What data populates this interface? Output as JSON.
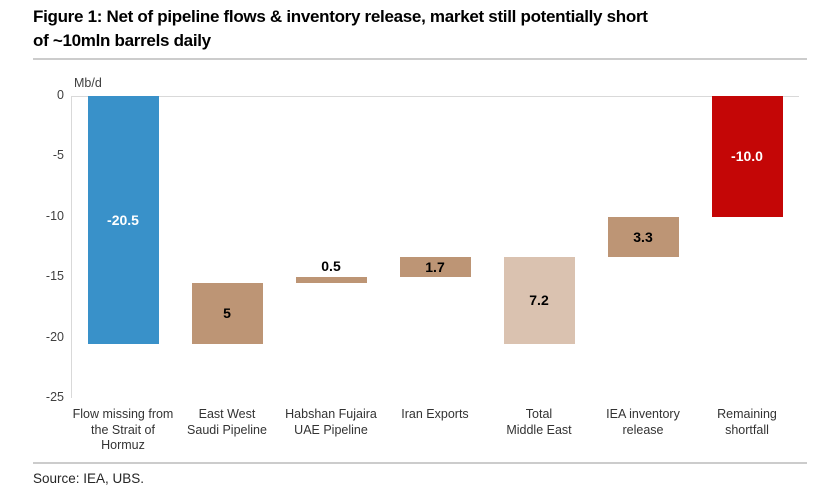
{
  "figure_title": "Figure 1: Net of pipeline flows & inventory release, market still potentially short\nof ~10mln barrels daily",
  "source_text": "Source: IEA, UBS.",
  "chart_data": {
    "type": "bar",
    "subtype": "waterfall",
    "title": "Figure 1: Net of pipeline flows & inventory release, market still potentially short of ~10mln barrels daily",
    "ylabel": "Mb/d",
    "xlabel": "",
    "ylim": [
      -25,
      0
    ],
    "yticks": [
      0,
      -5,
      -10,
      -15,
      -20,
      -25
    ],
    "grid": "zero-line-only",
    "legend": false,
    "categories": [
      "Flow missing from\nthe Strait of\nHormuz",
      "East West\nSaudi Pipeline",
      "Habshan Fujaira\nUAE Pipeline",
      "Iran Exports",
      "Total\nMiddle East",
      "IEA inventory\nrelease",
      "Remaining\nshortfall"
    ],
    "bars": [
      {
        "category": "Flow missing from the Strait of Hormuz",
        "value": -20.5,
        "from": 0,
        "to": -20.5,
        "label": "-20.5",
        "color": "#3991c9",
        "label_color": "#ffffff",
        "label_placement": "inside"
      },
      {
        "category": "East West Saudi Pipeline",
        "value": 5,
        "from": -15.5,
        "to": -20.5,
        "label": "5",
        "color": "#bd9575",
        "label_color": "#000000",
        "label_placement": "inside"
      },
      {
        "category": "Habshan Fujaira UAE Pipeline",
        "value": 0.5,
        "from": -15.0,
        "to": -15.5,
        "label": "0.5",
        "color": "#bd9575",
        "label_color": "#000000",
        "label_placement": "above"
      },
      {
        "category": "Iran Exports",
        "value": 1.7,
        "from": -13.3,
        "to": -15.0,
        "label": "1.7",
        "color": "#bd9575",
        "label_color": "#000000",
        "label_placement": "inside"
      },
      {
        "category": "Total Middle East",
        "value": 7.2,
        "from": -13.3,
        "to": -20.5,
        "label": "7.2",
        "color": "#dac2b0",
        "label_color": "#000000",
        "label_placement": "inside"
      },
      {
        "category": "IEA inventory release",
        "value": 3.3,
        "from": -10.0,
        "to": -13.3,
        "label": "3.3",
        "color": "#bd9575",
        "label_color": "#000000",
        "label_placement": "inside"
      },
      {
        "category": "Remaining shortfall",
        "value": -10.0,
        "from": 0,
        "to": -10.0,
        "label": "-10.0",
        "color": "#c40606",
        "label_color": "#ffffff",
        "label_placement": "inside"
      }
    ],
    "colors": {
      "missing_flow": "#3991c9",
      "offset_flows": "#bd9575",
      "subtotal": "#dac2b0",
      "shortfall": "#c40606",
      "axis": "#d9d9d9"
    }
  }
}
